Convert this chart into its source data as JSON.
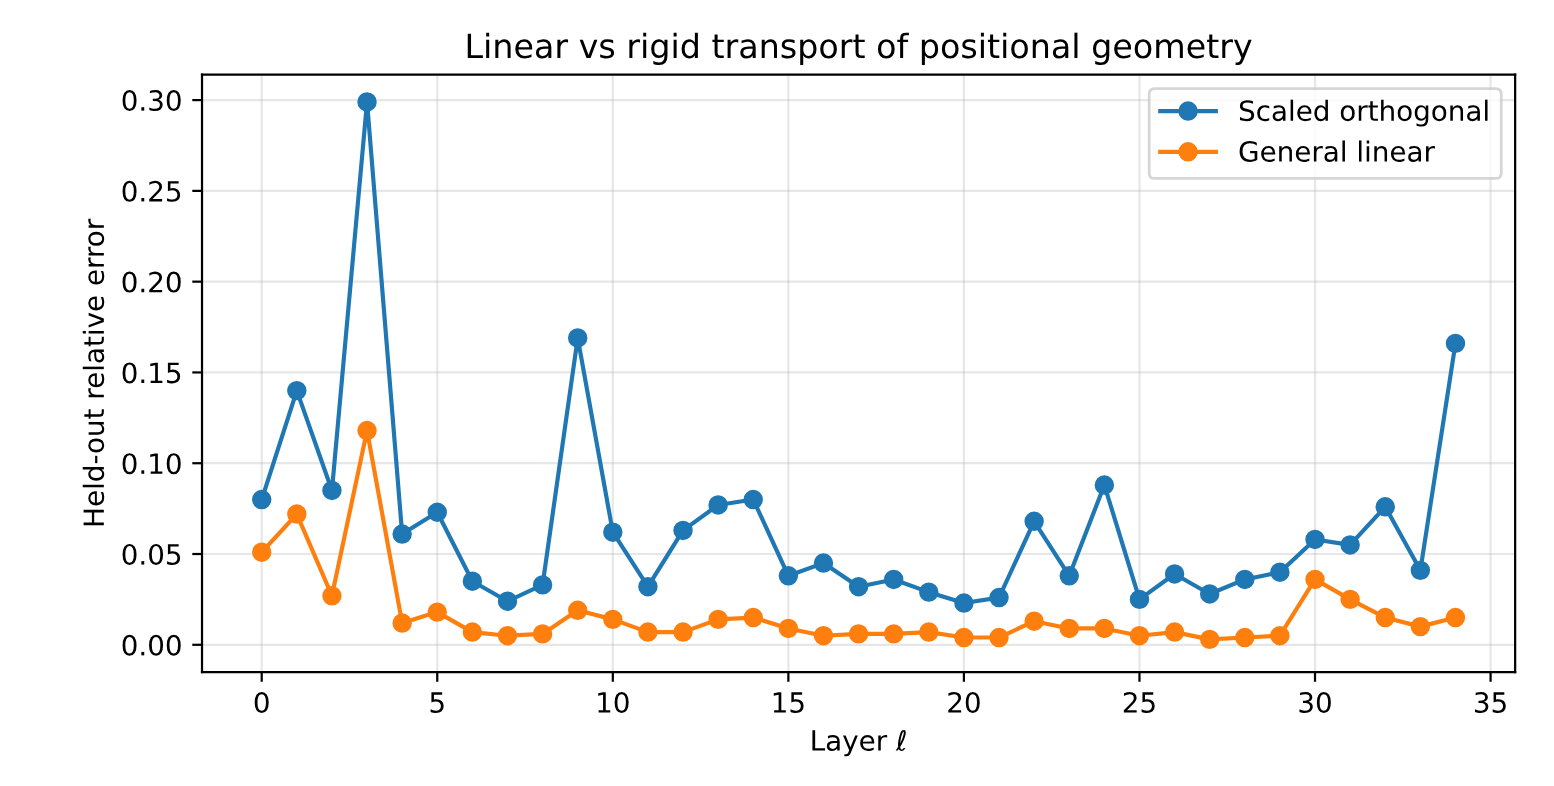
{
  "chart_data": {
    "type": "line",
    "title": "Linear vs rigid transport of positional geometry",
    "xlabel": "Layer ℓ",
    "ylabel": "Held-out relative error",
    "x": [
      0,
      1,
      2,
      3,
      4,
      5,
      6,
      7,
      8,
      9,
      10,
      11,
      12,
      13,
      14,
      15,
      16,
      17,
      18,
      19,
      20,
      21,
      22,
      23,
      24,
      25,
      26,
      27,
      28,
      29,
      30,
      31,
      32,
      33,
      34
    ],
    "series": [
      {
        "name": "Scaled orthogonal",
        "color": "#1f77b4",
        "values": [
          0.08,
          0.14,
          0.085,
          0.299,
          0.061,
          0.073,
          0.035,
          0.024,
          0.033,
          0.169,
          0.062,
          0.032,
          0.063,
          0.077,
          0.08,
          0.038,
          0.045,
          0.032,
          0.036,
          0.029,
          0.023,
          0.026,
          0.068,
          0.038,
          0.088,
          0.025,
          0.039,
          0.028,
          0.036,
          0.04,
          0.058,
          0.055,
          0.076,
          0.041,
          0.166
        ]
      },
      {
        "name": "General linear",
        "color": "#ff7f0e",
        "values": [
          0.051,
          0.072,
          0.027,
          0.118,
          0.012,
          0.018,
          0.007,
          0.005,
          0.006,
          0.019,
          0.014,
          0.007,
          0.007,
          0.014,
          0.015,
          0.009,
          0.005,
          0.006,
          0.006,
          0.007,
          0.004,
          0.004,
          0.013,
          0.009,
          0.009,
          0.005,
          0.007,
          0.003,
          0.004,
          0.005,
          0.036,
          0.025,
          0.015,
          0.01,
          0.015
        ]
      }
    ],
    "xlim": [
      -1.7,
      35.7
    ],
    "xticks": [
      0,
      5,
      10,
      15,
      20,
      25,
      30,
      35
    ],
    "ylim": [
      -0.015,
      0.314
    ],
    "yticks": [
      {
        "value": 0,
        "label": "0.00"
      },
      {
        "value": 0.05,
        "label": "0.05"
      },
      {
        "value": 0.1,
        "label": "0.10"
      },
      {
        "value": 0.15,
        "label": "0.15"
      },
      {
        "value": 0.2,
        "label": "0.20"
      },
      {
        "value": 0.25,
        "label": "0.25"
      },
      {
        "value": 0.3,
        "label": "0.30"
      }
    ],
    "grid": true,
    "legend": "top right",
    "marker": "circle",
    "line_style": "solid"
  }
}
